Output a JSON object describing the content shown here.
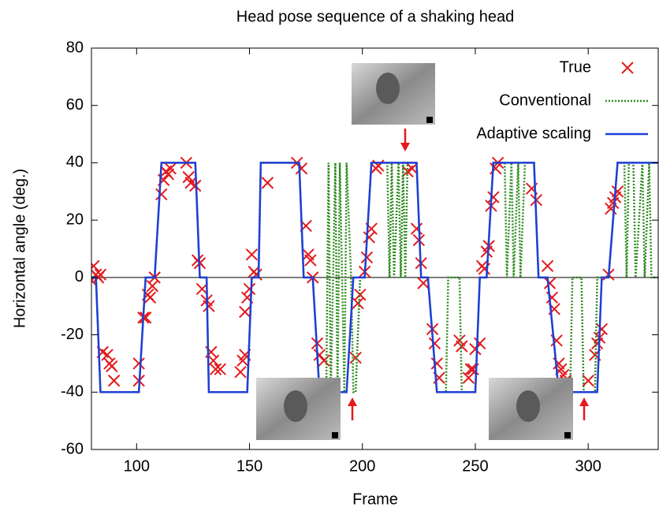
{
  "chart_data": {
    "type": "line",
    "title": "Head pose sequence of a shaking head",
    "xlabel": "Frame",
    "ylabel": "Horizontal angle (deg.)",
    "xlim": [
      80,
      331
    ],
    "ylim": [
      -60,
      80
    ],
    "xticks": [
      100,
      150,
      200,
      250,
      300
    ],
    "yticks": [
      -60,
      -40,
      -20,
      0,
      20,
      40,
      60,
      80
    ],
    "legend": "upper right",
    "series": [
      {
        "name": "True",
        "color": "#e41a1c",
        "style": "markers",
        "x": [
          80,
          81,
          82,
          83,
          84,
          85,
          87,
          88,
          89,
          90,
          101,
          101,
          103,
          104,
          105,
          106,
          107,
          108,
          111,
          112,
          113,
          114,
          115,
          122,
          123,
          124,
          126,
          127,
          128,
          129,
          131,
          132,
          133,
          134,
          135,
          137,
          146,
          147,
          148,
          148,
          149,
          150,
          151,
          152,
          153,
          158,
          171,
          173,
          175,
          176,
          177,
          178,
          180,
          181,
          183,
          197,
          198,
          199,
          201,
          202,
          203,
          204,
          206,
          207,
          220,
          222,
          224,
          225,
          226,
          227,
          231,
          232,
          233,
          234,
          243,
          244,
          247,
          248,
          249,
          250,
          252,
          253,
          254,
          255,
          256,
          257,
          258,
          259,
          260,
          275,
          277,
          282,
          283,
          284,
          285,
          286,
          287,
          288,
          289,
          290,
          300,
          303,
          304,
          305,
          306,
          309,
          310,
          311,
          312,
          313
        ],
        "values": [
          -1,
          4,
          1,
          0,
          1,
          -26,
          -27,
          -30,
          -31,
          -36,
          -30,
          -36,
          -14,
          -14,
          -6,
          -7,
          -3,
          0,
          29,
          34,
          37,
          36,
          38,
          40,
          35,
          33,
          32,
          6,
          5,
          -4,
          -8,
          -10,
          -26,
          -29,
          -32,
          -32,
          -33,
          -29,
          -27,
          -12,
          -7,
          -4,
          8,
          2,
          1,
          33,
          40,
          38,
          18,
          8,
          6,
          0,
          -23,
          -27,
          -29,
          -28,
          -9,
          -6,
          2,
          7,
          14,
          17,
          38,
          39,
          37,
          38,
          17,
          13,
          5,
          -2,
          -18,
          -23,
          -30,
          -35,
          -22,
          -24,
          -35,
          -32,
          -32,
          -25,
          -23,
          4,
          3,
          9,
          11,
          25,
          28,
          38,
          40,
          31,
          27,
          4,
          -2,
          -7,
          -11,
          -22,
          -30,
          -32,
          -34,
          -36,
          -36,
          -27,
          -23,
          -21,
          -18,
          1,
          24,
          26,
          28,
          30
        ]
      },
      {
        "name": "Conventional",
        "color": "#2e8b1e",
        "style": "dotted",
        "x": [
          80,
          82,
          84,
          101,
          104,
          108,
          111,
          126,
          128,
          131,
          132,
          149,
          151,
          154,
          155,
          172,
          174,
          178,
          181,
          184,
          185,
          186,
          187,
          188,
          189,
          190,
          191,
          192,
          193,
          195,
          196,
          197,
          199,
          201,
          204,
          207,
          211,
          212,
          213,
          214,
          216,
          217,
          218,
          219,
          220,
          224,
          226,
          229,
          233,
          237,
          238,
          243,
          244,
          250,
          252,
          255,
          258,
          263,
          264,
          266,
          267,
          269,
          270,
          272,
          273,
          276,
          278,
          282,
          287,
          292,
          293,
          297,
          298,
          303,
          304,
          306,
          309,
          313,
          316,
          317,
          318,
          320,
          321,
          324,
          325,
          327,
          328,
          331
        ],
        "values": [
          0,
          0,
          -40,
          -40,
          0,
          0,
          40,
          40,
          0,
          0,
          -40,
          -40,
          0,
          0,
          40,
          40,
          0,
          0,
          -40,
          -40,
          40,
          -40,
          0,
          40,
          -40,
          40,
          0,
          -40,
          40,
          0,
          -40,
          -40,
          0,
          0,
          40,
          40,
          40,
          0,
          40,
          0,
          40,
          0,
          40,
          0,
          40,
          40,
          0,
          0,
          -40,
          -40,
          0,
          0,
          -40,
          -40,
          0,
          0,
          40,
          40,
          0,
          40,
          0,
          40,
          0,
          40,
          40,
          40,
          0,
          0,
          -40,
          -40,
          0,
          0,
          -40,
          -40,
          0,
          0,
          0,
          40,
          40,
          0,
          40,
          40,
          0,
          40,
          0,
          40,
          0,
          0
        ]
      },
      {
        "name": "Adaptive scaling",
        "color": "#1f3fd6",
        "style": "solid",
        "x": [
          80,
          82,
          84,
          101,
          104,
          108,
          111,
          126,
          128,
          131,
          132,
          149,
          151,
          154,
          155,
          172,
          174,
          178,
          181,
          193,
          196,
          201,
          204,
          224,
          226,
          229,
          233,
          250,
          252,
          255,
          258,
          276,
          278,
          282,
          287,
          304,
          306,
          309,
          313,
          331
        ],
        "values": [
          0,
          0,
          -40,
          -40,
          0,
          0,
          40,
          40,
          0,
          0,
          -40,
          -40,
          0,
          0,
          40,
          40,
          0,
          0,
          -40,
          -40,
          0,
          0,
          40,
          40,
          0,
          0,
          -40,
          -40,
          0,
          0,
          40,
          40,
          0,
          0,
          -40,
          -40,
          0,
          0,
          40,
          40
        ]
      }
    ]
  }
}
